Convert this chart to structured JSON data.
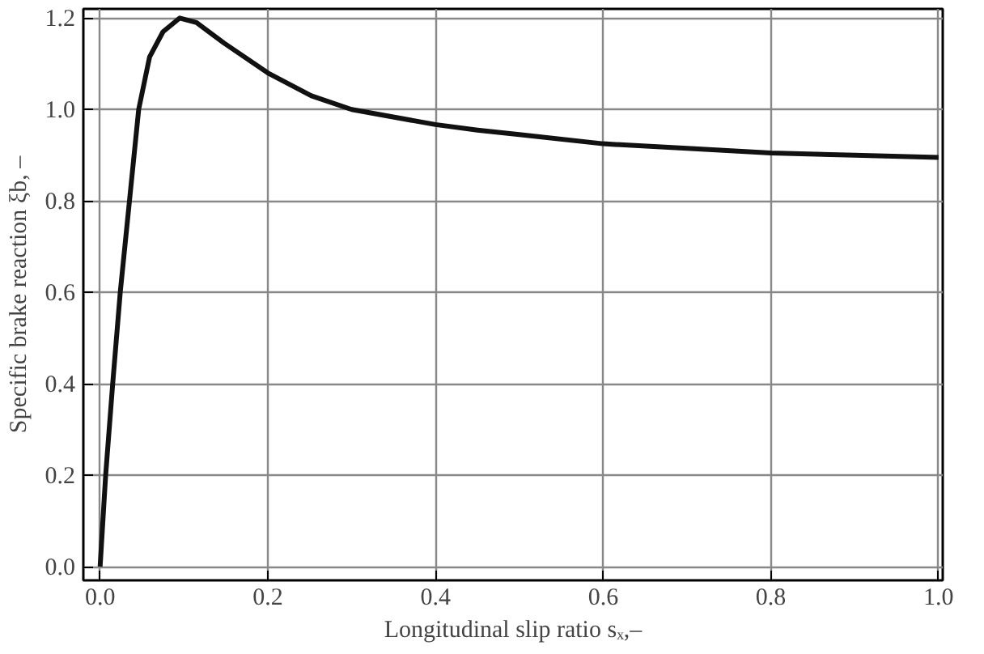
{
  "chart_data": {
    "type": "line",
    "xlabel": "Longitudinal slip ratio sₓ,–",
    "ylabel": "Specific brake reaction ξb, –",
    "x": [
      0,
      0.0066,
      0.015,
      0.024,
      0.035,
      0.046,
      0.059,
      0.075,
      0.095,
      0.115,
      0.148,
      0.2,
      0.252,
      0.3,
      0.4,
      0.45,
      0.5,
      0.6,
      0.7,
      0.8,
      0.9,
      1.0
    ],
    "series": [
      {
        "color": "#111111",
        "values": [
          0,
          0.2,
          0.4,
          0.6,
          0.8,
          1.0,
          1.115,
          1.17,
          1.2,
          1.19,
          1.145,
          1.08,
          1.03,
          1.0,
          0.967,
          0.955,
          0.945,
          0.925,
          0.915,
          0.905,
          0.9,
          0.895
        ]
      }
    ],
    "xlim": [
      -0.02,
      1.005
    ],
    "ylim": [
      -0.03,
      1.22
    ],
    "xticks": [
      {
        "value": 0,
        "label": "0.0"
      },
      0.2,
      0.4,
      0.6,
      0.8,
      {
        "value": 1,
        "label": "1.0"
      }
    ],
    "yticks": [
      {
        "value": 0,
        "label": "0.0"
      },
      0.2,
      0.4,
      0.6,
      0.8,
      {
        "value": 1,
        "label": "1.0"
      },
      1.2
    ],
    "grid": true,
    "marker": "none",
    "line_style": "solid"
  }
}
